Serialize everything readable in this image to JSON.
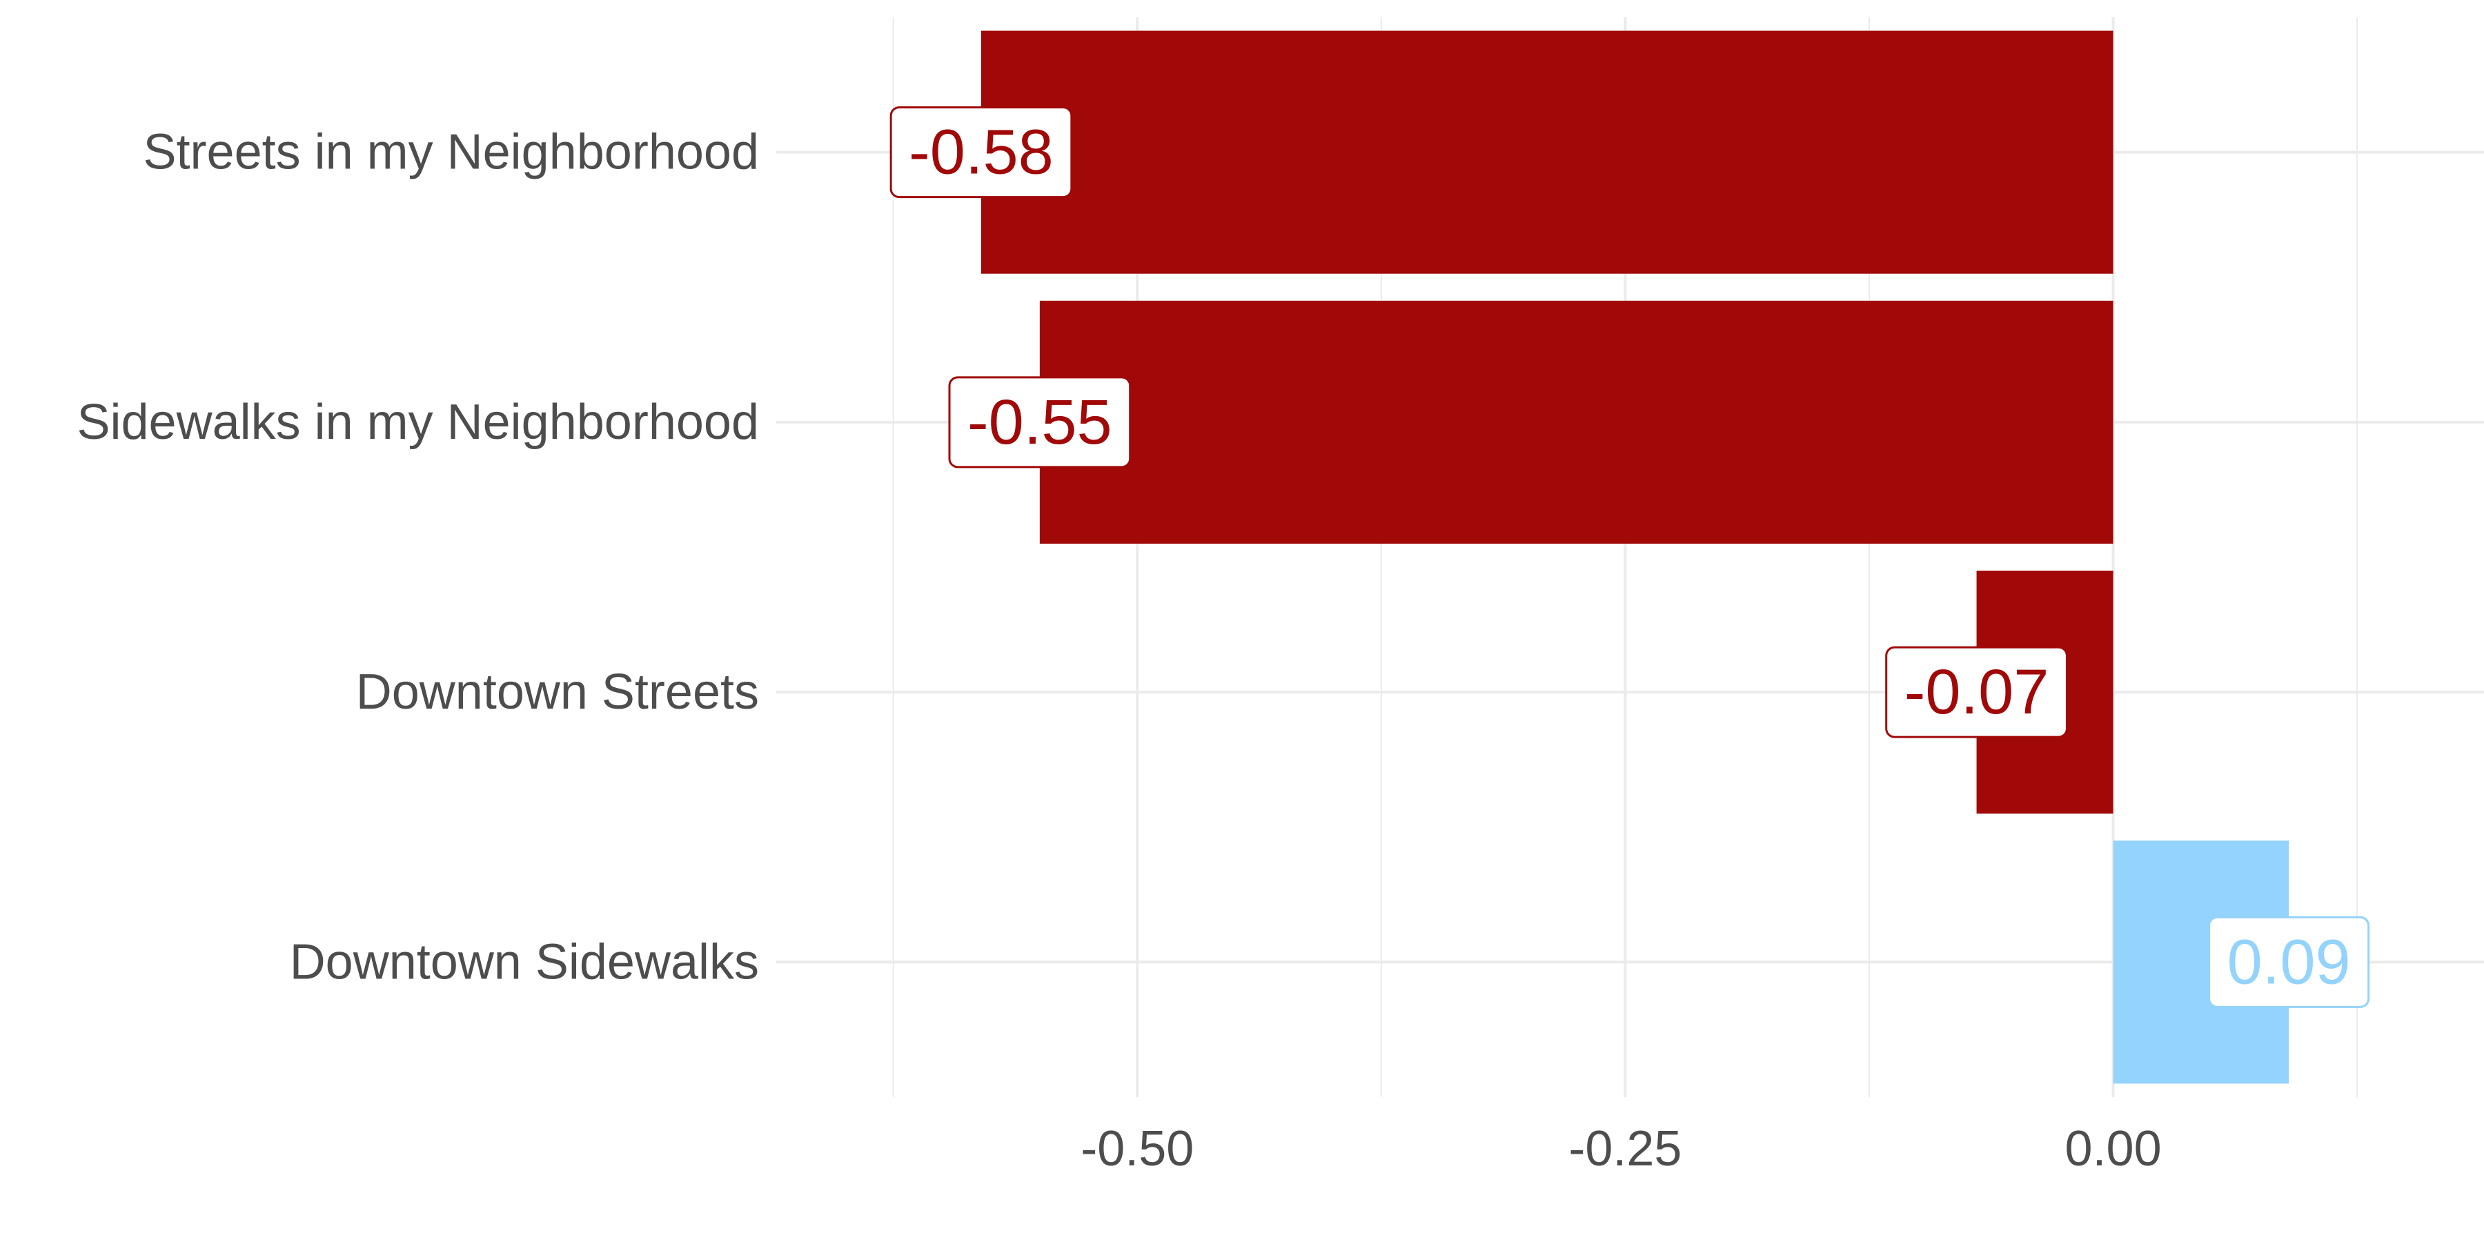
{
  "chart_data": {
    "type": "bar",
    "orientation": "horizontal",
    "categories": [
      "Streets in my Neighborhood",
      "Sidewalks in my Neighborhood",
      "Downtown Streets",
      "Downtown Sidewalks"
    ],
    "values": [
      -0.58,
      -0.55,
      -0.07,
      0.09
    ],
    "data_labels": [
      "-0.58",
      "-0.55",
      "-0.07",
      "0.09"
    ],
    "xticks": [
      -0.5,
      -0.25,
      0.0
    ],
    "xtick_labels": [
      "-0.50",
      "-0.25",
      "0.00"
    ],
    "xlim": [
      -0.685,
      0.19
    ],
    "title": "",
    "xlabel": "",
    "ylabel": "",
    "grid": true,
    "legend": "none",
    "colors": {
      "negative": "#a10808",
      "positive": "#93d3fc",
      "grid": "#ebebeb",
      "text": "#4d4d4d"
    }
  }
}
